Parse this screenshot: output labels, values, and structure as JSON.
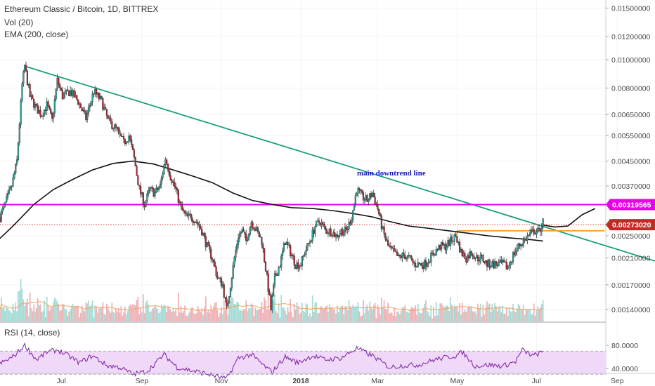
{
  "legend": {
    "title": "Ethereum Classic / Bitcoin, 1D, BITTREX",
    "volume": "Vol (20)",
    "ema": "EMA (200, close)",
    "rsi": "RSI (14, close)"
  },
  "colors": {
    "up": "#26a69a",
    "down": "#b22833",
    "trendline": "#1aa07a",
    "resistance": "#e800e8",
    "support": "#f0a020",
    "ema": "#111111",
    "volume_ma": "#f4a460",
    "rsi_line": "#7b1fa2",
    "rsi_band": "#f0d8f8",
    "price_line": "#c62828"
  },
  "chart_data": [
    {
      "type": "candlestick",
      "title": "Ethereum Classic / Bitcoin, 1D, BITTREX",
      "y_scale": "log",
      "y_ticks": [
        0.015,
        0.012,
        0.01,
        0.008,
        0.0065,
        0.0055,
        0.0045,
        0.0037,
        0.0025,
        0.0021,
        0.0017,
        0.0014
      ],
      "y_tick_labels": [
        "0.01500000",
        "0.01200000",
        "0.01000000",
        "0.00800000",
        "0.00650000",
        "0.00550000",
        "0.00450000",
        "0.00370000",
        "0.00250000",
        "0.00210000",
        "0.00170000",
        "0.00140000"
      ],
      "x_ticks": [
        "Jul",
        "Sep",
        "Nov",
        "2018",
        "Mar",
        "May",
        "Jul",
        "Sep"
      ],
      "x_tick_dates": [
        "2017-07-01",
        "2017-09-01",
        "2017-11-01",
        "2018-01-01",
        "2018-03-01",
        "2018-05-01",
        "2018-07-01",
        "2018-09-01"
      ],
      "x_range": [
        "2017-05-15",
        "2018-09-30"
      ],
      "price_tags": [
        {
          "label": "0.00319565",
          "value": 0.00319565,
          "color": "#e800e8"
        },
        {
          "label": "0.00273020",
          "value": 0.0027302,
          "color": "#c62828"
        }
      ],
      "close_path": [
        [
          "2017-05-15",
          0.0029
        ],
        [
          "2017-05-20",
          0.0033
        ],
        [
          "2017-05-24",
          0.0037
        ],
        [
          "2017-05-28",
          0.0045
        ],
        [
          "2017-06-01",
          0.0082
        ],
        [
          "2017-06-03",
          0.0095
        ],
        [
          "2017-06-07",
          0.0075
        ],
        [
          "2017-06-12",
          0.0068
        ],
        [
          "2017-06-16",
          0.0065
        ],
        [
          "2017-06-20",
          0.007
        ],
        [
          "2017-06-24",
          0.0062
        ],
        [
          "2017-06-28",
          0.0085
        ],
        [
          "2017-07-02",
          0.0075
        ],
        [
          "2017-07-08",
          0.0078
        ],
        [
          "2017-07-14",
          0.0072
        ],
        [
          "2017-07-20",
          0.0063
        ],
        [
          "2017-07-26",
          0.0078
        ],
        [
          "2017-08-01",
          0.0072
        ],
        [
          "2017-08-06",
          0.0062
        ],
        [
          "2017-08-12",
          0.0058
        ],
        [
          "2017-08-18",
          0.0052
        ],
        [
          "2017-08-22",
          0.0055
        ],
        [
          "2017-08-26",
          0.0046
        ],
        [
          "2017-08-30",
          0.0036
        ],
        [
          "2017-09-03",
          0.0032
        ],
        [
          "2017-09-07",
          0.0036
        ],
        [
          "2017-09-11",
          0.0035
        ],
        [
          "2017-09-15",
          0.0037
        ],
        [
          "2017-09-19",
          0.0046
        ],
        [
          "2017-09-23",
          0.004
        ],
        [
          "2017-09-27",
          0.0036
        ],
        [
          "2017-10-01",
          0.0031
        ],
        [
          "2017-10-05",
          0.0029
        ],
        [
          "2017-10-09",
          0.0029
        ],
        [
          "2017-10-13",
          0.0028
        ],
        [
          "2017-10-17",
          0.0026
        ],
        [
          "2017-10-21",
          0.0023
        ],
        [
          "2017-10-25",
          0.0021
        ],
        [
          "2017-10-29",
          0.0018
        ],
        [
          "2017-11-02",
          0.0017
        ],
        [
          "2017-11-05",
          0.0014
        ],
        [
          "2017-11-08",
          0.0017
        ],
        [
          "2017-11-11",
          0.0021
        ],
        [
          "2017-11-14",
          0.0025
        ],
        [
          "2017-11-17",
          0.0026
        ],
        [
          "2017-11-20",
          0.0024
        ],
        [
          "2017-11-24",
          0.0028
        ],
        [
          "2017-11-28",
          0.0026
        ],
        [
          "2017-12-02",
          0.0024
        ],
        [
          "2017-12-06",
          0.0018
        ],
        [
          "2017-12-09",
          0.0014
        ],
        [
          "2017-12-12",
          0.0018
        ],
        [
          "2017-12-16",
          0.002
        ],
        [
          "2017-12-20",
          0.0024
        ],
        [
          "2017-12-24",
          0.0022
        ],
        [
          "2017-12-28",
          0.002
        ],
        [
          "2018-01-01",
          0.002
        ],
        [
          "2018-01-04",
          0.0022
        ],
        [
          "2018-01-08",
          0.0024
        ],
        [
          "2018-01-12",
          0.0027
        ],
        [
          "2018-01-16",
          0.0028
        ],
        [
          "2018-01-20",
          0.0026
        ],
        [
          "2018-01-24",
          0.0026
        ],
        [
          "2018-01-28",
          0.0025
        ],
        [
          "2018-02-01",
          0.0026
        ],
        [
          "2018-02-05",
          0.0026
        ],
        [
          "2018-02-09",
          0.0029
        ],
        [
          "2018-02-13",
          0.0036
        ],
        [
          "2018-02-17",
          0.0034
        ],
        [
          "2018-02-21",
          0.0033
        ],
        [
          "2018-02-25",
          0.0035
        ],
        [
          "2018-03-01",
          0.0031
        ],
        [
          "2018-03-05",
          0.0026
        ],
        [
          "2018-03-09",
          0.0023
        ],
        [
          "2018-03-13",
          0.0022
        ],
        [
          "2018-03-17",
          0.0021
        ],
        [
          "2018-03-21",
          0.00215
        ],
        [
          "2018-03-25",
          0.0021
        ],
        [
          "2018-03-29",
          0.002
        ],
        [
          "2018-04-02",
          0.002
        ],
        [
          "2018-04-06",
          0.002
        ],
        [
          "2018-04-10",
          0.0021
        ],
        [
          "2018-04-14",
          0.0022
        ],
        [
          "2018-04-18",
          0.0023
        ],
        [
          "2018-04-22",
          0.0023
        ],
        [
          "2018-04-26",
          0.0024
        ],
        [
          "2018-04-30",
          0.0025
        ],
        [
          "2018-05-04",
          0.0022
        ],
        [
          "2018-05-08",
          0.0021
        ],
        [
          "2018-05-12",
          0.0022
        ],
        [
          "2018-05-16",
          0.0021
        ],
        [
          "2018-05-20",
          0.0021
        ],
        [
          "2018-05-24",
          0.002
        ],
        [
          "2018-05-28",
          0.002
        ],
        [
          "2018-06-01",
          0.002
        ],
        [
          "2018-06-05",
          0.002
        ],
        [
          "2018-06-09",
          0.00195
        ],
        [
          "2018-06-13",
          0.00215
        ],
        [
          "2018-06-17",
          0.0023
        ],
        [
          "2018-06-21",
          0.0024
        ],
        [
          "2018-06-25",
          0.0025
        ],
        [
          "2018-06-29",
          0.0026
        ],
        [
          "2018-07-03",
          0.00258
        ],
        [
          "2018-07-06",
          0.0028
        ]
      ],
      "ema_path": [
        [
          "2017-05-15",
          0.00245
        ],
        [
          "2017-05-25",
          0.0027
        ],
        [
          "2017-06-10",
          0.0032
        ],
        [
          "2017-06-25",
          0.0036
        ],
        [
          "2017-07-10",
          0.0039
        ],
        [
          "2017-07-25",
          0.0042
        ],
        [
          "2017-08-10",
          0.00442
        ],
        [
          "2017-08-25",
          0.0045
        ],
        [
          "2017-09-10",
          0.0044
        ],
        [
          "2017-09-25",
          0.0042
        ],
        [
          "2017-10-10",
          0.004
        ],
        [
          "2017-10-25",
          0.0038
        ],
        [
          "2017-11-10",
          0.0035
        ],
        [
          "2017-11-25",
          0.0033
        ],
        [
          "2017-12-10",
          0.0032
        ],
        [
          "2017-12-25",
          0.00312
        ],
        [
          "2018-01-10",
          0.0031
        ],
        [
          "2018-01-25",
          0.00305
        ],
        [
          "2018-02-10",
          0.00298
        ],
        [
          "2018-02-25",
          0.0029
        ],
        [
          "2018-03-10",
          0.0028
        ],
        [
          "2018-03-25",
          0.0027
        ],
        [
          "2018-04-10",
          0.00265
        ],
        [
          "2018-04-25",
          0.0026
        ],
        [
          "2018-05-10",
          0.00255
        ],
        [
          "2018-05-25",
          0.0025
        ],
        [
          "2018-06-10",
          0.00246
        ],
        [
          "2018-06-25",
          0.00243
        ],
        [
          "2018-07-06",
          0.0024
        ]
      ],
      "trendline": {
        "from": [
          "2017-06-03",
          0.0095
        ],
        "to": [
          "2018-09-30",
          0.00205
        ],
        "label": "main downtrend line"
      },
      "resistance": {
        "value": 0.00319565
      },
      "support": {
        "from": [
          "2018-05-01",
          0.0026
        ],
        "to": [
          "2018-09-30",
          0.0026
        ]
      },
      "projection": [
        [
          "2018-07-06",
          0.00272
        ],
        [
          "2018-07-15",
          0.00268
        ],
        [
          "2018-07-25",
          0.0027
        ],
        [
          "2018-08-05",
          0.00295
        ],
        [
          "2018-08-15",
          0.0031
        ]
      ]
    },
    {
      "type": "area",
      "title": "RSI (14, close)",
      "y_ticks": [
        80,
        40
      ],
      "y_tick_labels": [
        "80.0000",
        "40.0000"
      ],
      "band": [
        30,
        70
      ],
      "path": [
        [
          "2017-05-15",
          48
        ],
        [
          "2017-05-25",
          60
        ],
        [
          "2017-06-03",
          80
        ],
        [
          "2017-06-12",
          55
        ],
        [
          "2017-06-20",
          68
        ],
        [
          "2017-06-28",
          72
        ],
        [
          "2017-07-08",
          60
        ],
        [
          "2017-07-15",
          50
        ],
        [
          "2017-07-25",
          62
        ],
        [
          "2017-08-05",
          45
        ],
        [
          "2017-08-15",
          42
        ],
        [
          "2017-08-25",
          30
        ],
        [
          "2017-09-05",
          35
        ],
        [
          "2017-09-18",
          64
        ],
        [
          "2017-09-28",
          42
        ],
        [
          "2017-10-10",
          36
        ],
        [
          "2017-10-22",
          30
        ],
        [
          "2017-11-05",
          22
        ],
        [
          "2017-11-14",
          58
        ],
        [
          "2017-11-24",
          64
        ],
        [
          "2017-12-05",
          42
        ],
        [
          "2017-12-10",
          34
        ],
        [
          "2017-12-20",
          60
        ],
        [
          "2017-12-30",
          50
        ],
        [
          "2018-01-10",
          62
        ],
        [
          "2018-01-20",
          55
        ],
        [
          "2018-02-01",
          58
        ],
        [
          "2018-02-13",
          75
        ],
        [
          "2018-02-25",
          62
        ],
        [
          "2018-03-10",
          42
        ],
        [
          "2018-03-20",
          45
        ],
        [
          "2018-04-01",
          46
        ],
        [
          "2018-04-15",
          56
        ],
        [
          "2018-04-30",
          62
        ],
        [
          "2018-05-05",
          68
        ],
        [
          "2018-05-15",
          44
        ],
        [
          "2018-05-25",
          46
        ],
        [
          "2018-06-05",
          44
        ],
        [
          "2018-06-15",
          52
        ],
        [
          "2018-06-20",
          72
        ],
        [
          "2018-06-28",
          62
        ],
        [
          "2018-07-06",
          68
        ]
      ]
    }
  ]
}
